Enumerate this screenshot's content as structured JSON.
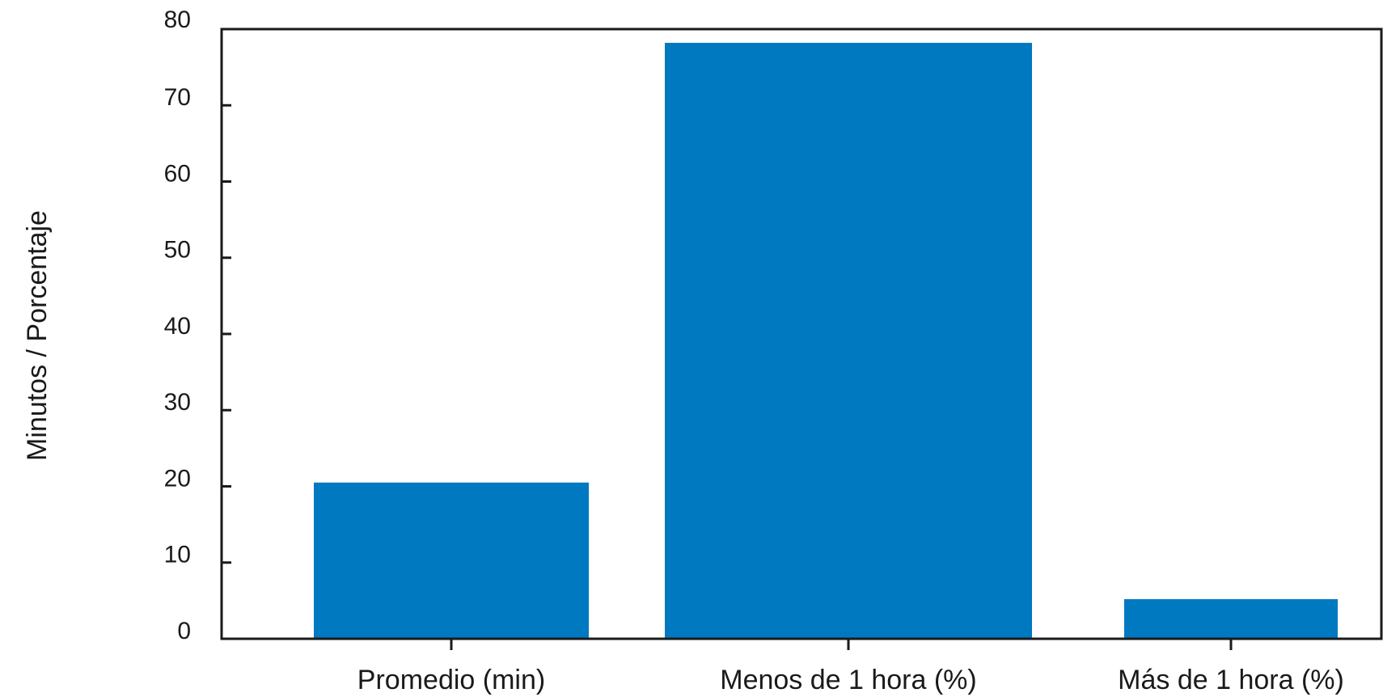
{
  "chart_data": {
    "type": "bar",
    "title": "",
    "xlabel": "",
    "ylabel": "Minutos / Porcentaje",
    "categories": [
      "Promedio (min)",
      "Menos de 1 hora (%)",
      "Más de 1 hora (%)"
    ],
    "values": [
      20.5,
      78.2,
      5.2
    ],
    "ylim": [
      0,
      80
    ],
    "yticks": [
      0,
      10,
      20,
      30,
      40,
      50,
      60,
      70,
      80
    ],
    "grid": false,
    "legend": "none",
    "bar_color": "#0079C1"
  }
}
